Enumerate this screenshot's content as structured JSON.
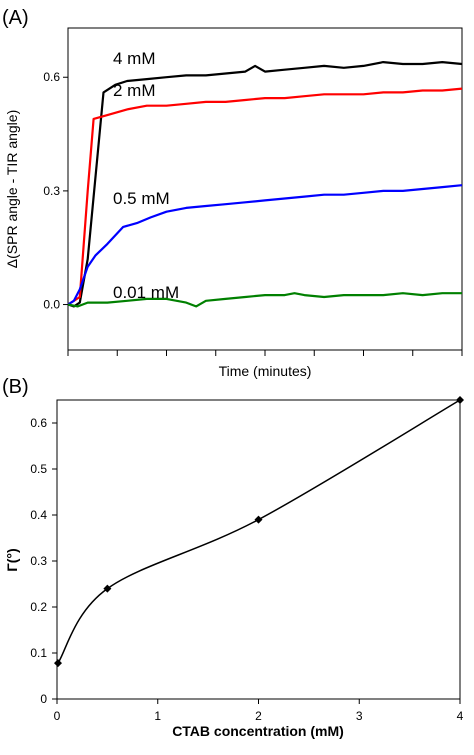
{
  "chart_data": [
    {
      "panel": "(A)",
      "type": "line",
      "title": "",
      "xlabel": "Time (minutes)",
      "ylabel": "Δ(SPR angle - TIR angle)",
      "ylim": [
        -0.12,
        0.73
      ],
      "xlim": [
        0,
        20
      ],
      "yticks": [
        "0.0",
        "0.3",
        "0.6"
      ],
      "ytick_values": [
        0.0,
        0.3,
        0.6
      ],
      "xtick_values": [
        0,
        2.5,
        5,
        7.5,
        10,
        12.5,
        15,
        17.5,
        20
      ],
      "xtick_labels": [],
      "grid": false,
      "series": [
        {
          "name": "4 mM",
          "color": "#000000",
          "x": [
            0,
            0.3,
            0.6,
            1.0,
            1.8,
            2.4,
            3.0,
            4.0,
            5.0,
            6.0,
            7.0,
            8.0,
            9.0,
            9.5,
            10.0,
            11.0,
            12.0,
            13.0,
            14.0,
            15.0,
            16.0,
            17.0,
            18.0,
            19.0,
            20.0
          ],
          "y": [
            0.0,
            -0.005,
            0.005,
            0.12,
            0.56,
            0.58,
            0.59,
            0.595,
            0.6,
            0.605,
            0.605,
            0.61,
            0.615,
            0.63,
            0.615,
            0.62,
            0.625,
            0.63,
            0.625,
            0.63,
            0.64,
            0.635,
            0.635,
            0.64,
            0.635
          ]
        },
        {
          "name": "2 mM",
          "color": "#ff0000",
          "x": [
            0,
            0.3,
            0.6,
            1.0,
            1.3,
            2.0,
            3.0,
            4.0,
            5.0,
            6.0,
            7.0,
            8.0,
            9.0,
            10.0,
            11.0,
            12.0,
            13.0,
            14.0,
            15.0,
            16.0,
            17.0,
            18.0,
            19.0,
            20.0
          ],
          "y": [
            0.0,
            0.01,
            0.02,
            0.3,
            0.49,
            0.5,
            0.515,
            0.525,
            0.525,
            0.53,
            0.535,
            0.535,
            0.54,
            0.545,
            0.545,
            0.55,
            0.555,
            0.555,
            0.555,
            0.56,
            0.56,
            0.565,
            0.565,
            0.57
          ]
        },
        {
          "name": "0.5 mM",
          "color": "#0000ff",
          "x": [
            0,
            0.3,
            0.6,
            1.0,
            1.4,
            2.0,
            2.8,
            3.5,
            4.2,
            5.0,
            6.0,
            7.0,
            8.0,
            9.0,
            10.0,
            11.0,
            12.0,
            13.0,
            14.0,
            15.0,
            16.0,
            17.0,
            18.0,
            19.0,
            20.0
          ],
          "y": [
            0.0,
            0.01,
            0.04,
            0.1,
            0.13,
            0.16,
            0.205,
            0.215,
            0.23,
            0.245,
            0.255,
            0.26,
            0.265,
            0.27,
            0.275,
            0.28,
            0.285,
            0.29,
            0.29,
            0.295,
            0.3,
            0.3,
            0.305,
            0.31,
            0.315
          ]
        },
        {
          "name": "0.01 mM",
          "color": "#008000",
          "x": [
            0,
            0.5,
            1.0,
            2.0,
            3.0,
            4.0,
            5.0,
            6.0,
            6.5,
            7.0,
            8.0,
            9.0,
            10.0,
            11.0,
            11.5,
            12.0,
            13.0,
            14.0,
            15.0,
            16.0,
            17.0,
            18.0,
            19.0,
            20.0
          ],
          "y": [
            0.0,
            -0.005,
            0.005,
            0.005,
            0.01,
            0.015,
            0.015,
            0.005,
            -0.005,
            0.01,
            0.015,
            0.02,
            0.025,
            0.025,
            0.03,
            0.025,
            0.02,
            0.025,
            0.025,
            0.025,
            0.03,
            0.025,
            0.03,
            0.03
          ]
        }
      ]
    },
    {
      "panel": "(B)",
      "type": "scatter",
      "title": "",
      "xlabel": "CTAB concentration (mM)",
      "ylabel": "Γ(°)",
      "xlim": [
        0,
        4
      ],
      "ylim": [
        0,
        0.65
      ],
      "xticks": [
        0,
        1,
        2,
        3,
        4
      ],
      "yticks": [
        0,
        0.1,
        0.2,
        0.3,
        0.4,
        0.5,
        0.6
      ],
      "grid": false,
      "series": [
        {
          "color": "#000000",
          "x": [
            0.01,
            0.5,
            2.0,
            4.0
          ],
          "y": [
            0.078,
            0.24,
            0.39,
            0.65
          ]
        }
      ]
    }
  ]
}
